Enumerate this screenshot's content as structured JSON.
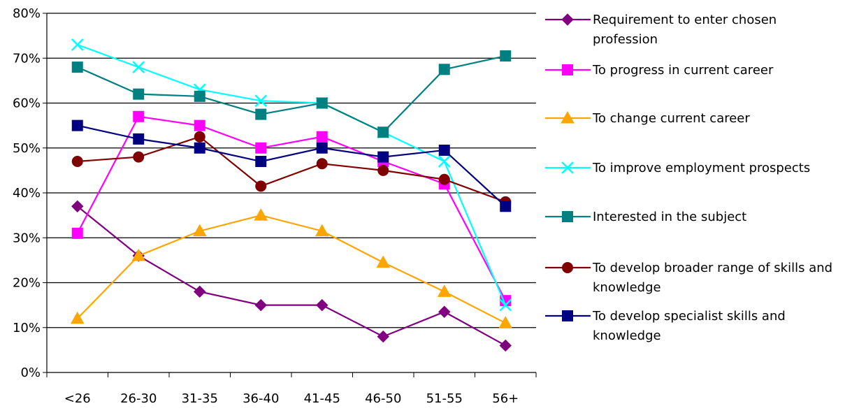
{
  "chart_data": {
    "type": "line",
    "categories": [
      "<26",
      "26-30",
      "31-35",
      "36-40",
      "41-45",
      "46-50",
      "51-55",
      "56+"
    ],
    "ylim": [
      0,
      80
    ],
    "yticks": [
      0,
      10,
      20,
      30,
      40,
      50,
      60,
      70,
      80
    ],
    "ytick_labels": [
      "0%",
      "10%",
      "20%",
      "30%",
      "40%",
      "50%",
      "60%",
      "70%",
      "80%"
    ],
    "grid": true,
    "legend_position": "right",
    "series": [
      {
        "name": "Requirement to enter chosen profession",
        "color": "#800080",
        "marker": "diamond",
        "values": [
          37,
          26,
          18,
          15,
          15,
          8,
          13.5,
          6
        ]
      },
      {
        "name": "To progress in current career",
        "color": "#ff00ff",
        "marker": "square",
        "values": [
          31,
          57,
          55,
          50,
          52.5,
          47,
          42,
          16
        ]
      },
      {
        "name": "To change current career",
        "color": "#ffa500",
        "marker": "triangle",
        "values": [
          12,
          26,
          31.5,
          35,
          31.5,
          24.5,
          18,
          11
        ]
      },
      {
        "name": "To improve employment prospects",
        "color": "#00ffff",
        "marker": "x",
        "values": [
          73,
          68,
          63,
          60.5,
          60,
          53.5,
          47,
          15
        ]
      },
      {
        "name": "Interested in the subject",
        "color": "#008080",
        "marker": "square",
        "values": [
          68,
          62,
          61.5,
          57.5,
          60,
          53.5,
          67.5,
          70.5
        ]
      },
      {
        "name": "To develop broader range of skills and knowledge",
        "color": "#800000",
        "marker": "circle",
        "values": [
          47,
          48,
          52.5,
          41.5,
          46.5,
          45,
          43,
          38
        ]
      },
      {
        "name": "To develop specialist skills and knowledge",
        "color": "#000080",
        "marker": "square",
        "values": [
          55,
          52,
          50,
          47,
          50,
          48,
          49.5,
          37
        ]
      }
    ]
  }
}
